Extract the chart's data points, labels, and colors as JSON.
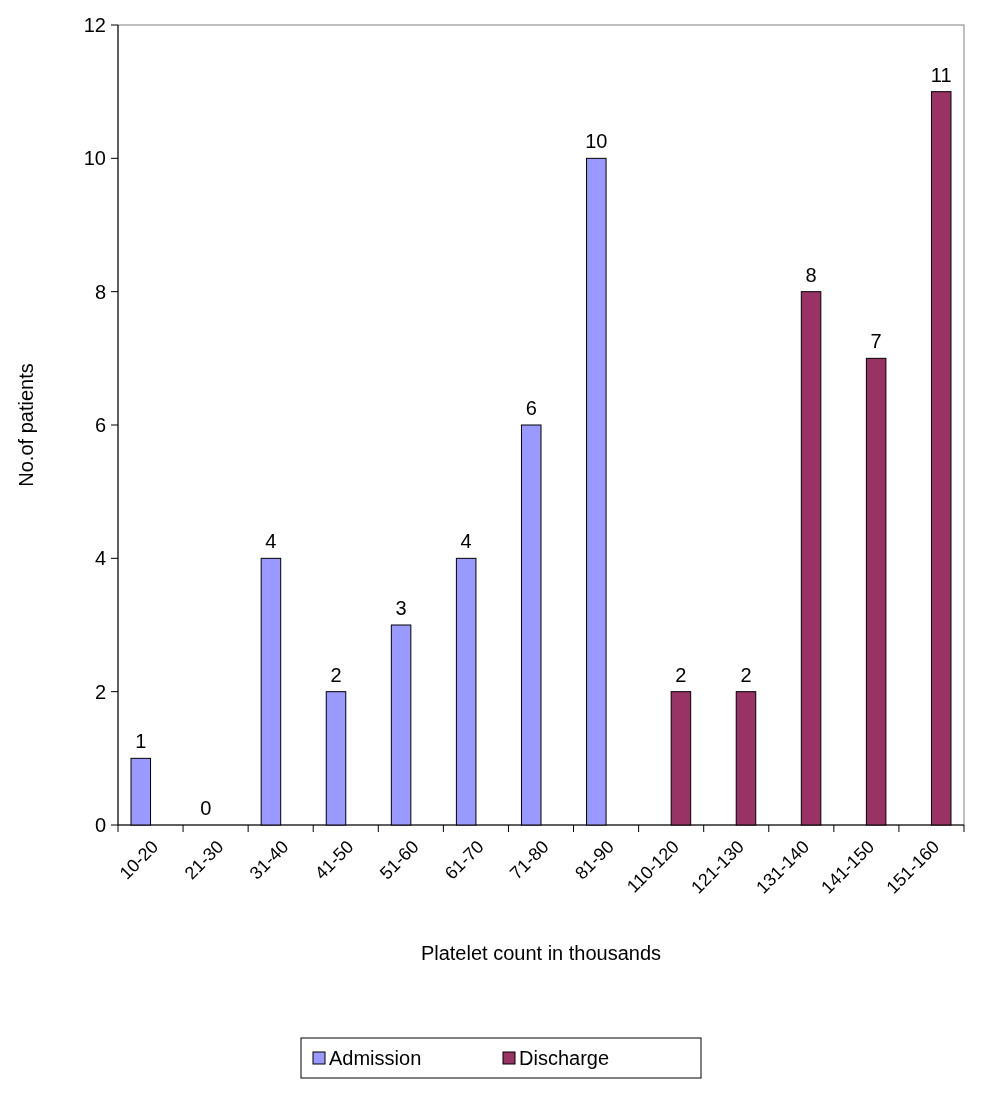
{
  "chart_data": {
    "type": "bar",
    "xlabel": "Platelet count in thousands",
    "ylabel": "No.of patients",
    "categories": [
      "10-20",
      "21-30",
      "31-40",
      "41-50",
      "51-60",
      "61-70",
      "71-80",
      "81-90",
      "110-120",
      "121-130",
      "131-140",
      "141-150",
      "151-160"
    ],
    "series": [
      {
        "name": "Admission",
        "color": "#9999ff",
        "values": [
          1,
          0,
          4,
          2,
          3,
          4,
          6,
          10,
          null,
          null,
          null,
          null,
          null
        ]
      },
      {
        "name": "Discharge",
        "color": "#993366",
        "values": [
          null,
          null,
          null,
          null,
          null,
          null,
          null,
          null,
          2,
          2,
          8,
          7,
          11
        ]
      }
    ],
    "ylim": [
      0,
      12
    ],
    "yticks": [
      0,
      2,
      4,
      6,
      8,
      10,
      12
    ],
    "data_labels": true,
    "grid": false,
    "legend": "bottom"
  }
}
